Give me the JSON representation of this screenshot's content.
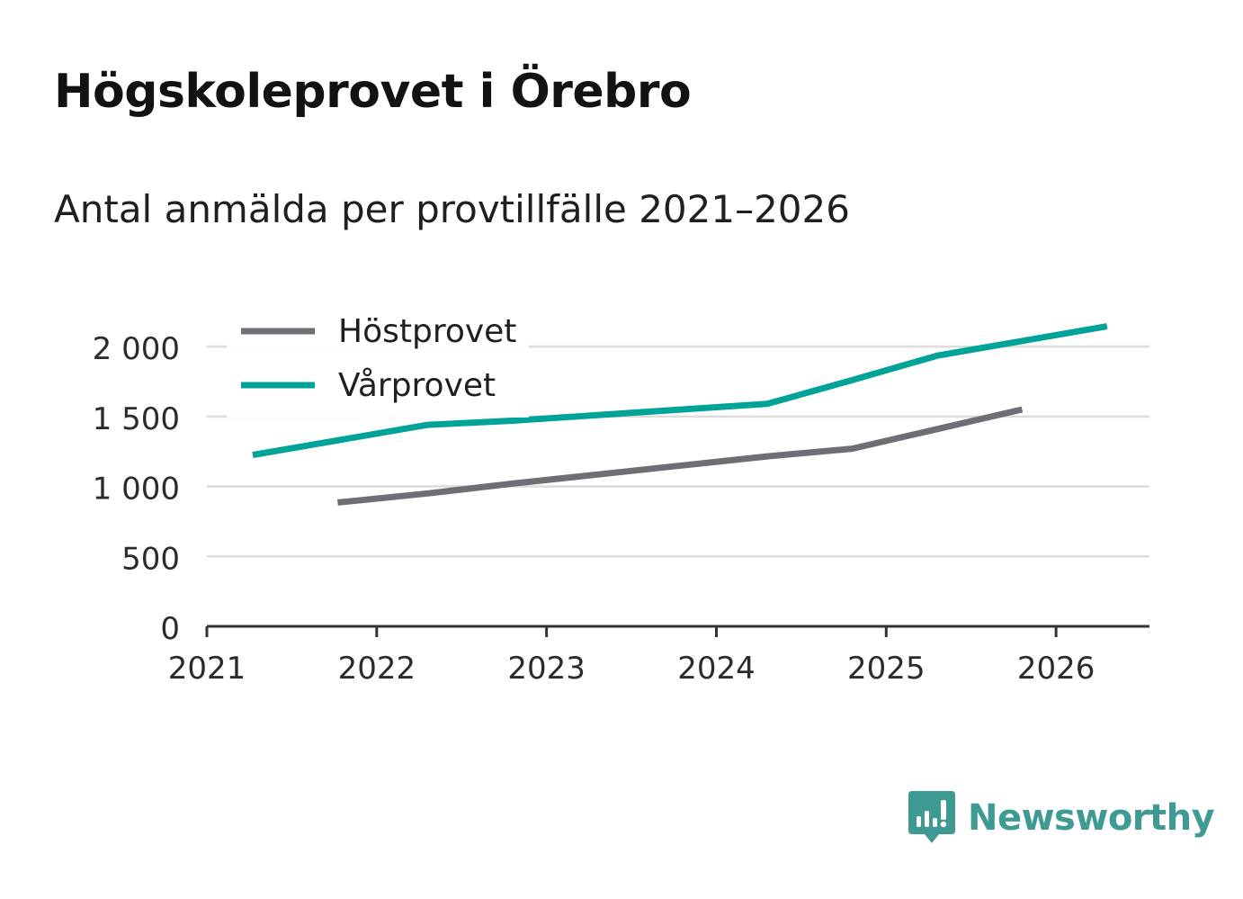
{
  "title": "Högskoleprovet i Örebro",
  "subtitle": "Antal anmälda per provtillfälle 2021–2026",
  "brand": {
    "name": "Newsworthy",
    "icon": "bar-chart-speech-bubble-icon",
    "color": "#3e9a93"
  },
  "chart_data": {
    "type": "line",
    "x_ticks": [
      "2021",
      "2022",
      "2023",
      "2024",
      "2025",
      "2026"
    ],
    "y_ticks": [
      "0",
      "500",
      "1 000",
      "1 500",
      "2 000"
    ],
    "y_tick_values": [
      0,
      500,
      1000,
      1500,
      2000
    ],
    "xlim": [
      2021,
      2026.55
    ],
    "ylim": [
      0,
      2200
    ],
    "grid": true,
    "legend_position": "top-left",
    "series": [
      {
        "name": "Höstprovet",
        "color": "#6f6e75",
        "points": [
          [
            2021.77,
            885
          ],
          [
            2022.3,
            950
          ],
          [
            2022.8,
            1020
          ],
          [
            2023.3,
            1085
          ],
          [
            2023.8,
            1150
          ],
          [
            2024.3,
            1215
          ],
          [
            2024.8,
            1270
          ],
          [
            2025.3,
            1410
          ],
          [
            2025.8,
            1550
          ]
        ]
      },
      {
        "name": "Vårprovet",
        "color": "#00a398",
        "points": [
          [
            2021.27,
            1225
          ],
          [
            2022.3,
            1440
          ],
          [
            2022.8,
            1470
          ],
          [
            2023.3,
            1510
          ],
          [
            2023.8,
            1550
          ],
          [
            2024.3,
            1590
          ],
          [
            2024.8,
            1760
          ],
          [
            2025.3,
            1935
          ],
          [
            2025.8,
            2040
          ],
          [
            2026.3,
            2145
          ]
        ]
      }
    ]
  }
}
